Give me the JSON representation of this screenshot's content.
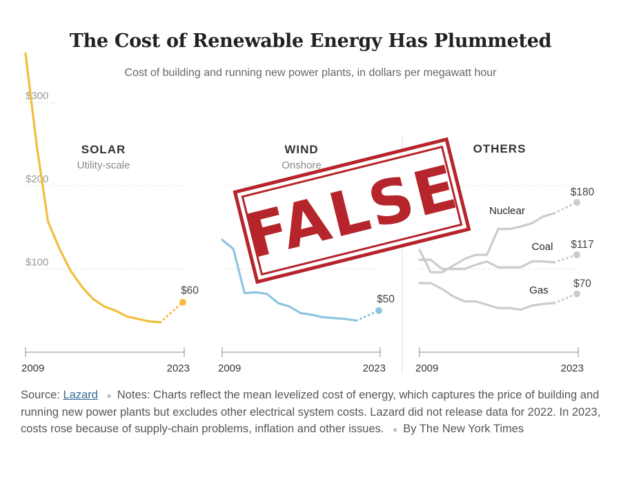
{
  "title": "The Cost of Renewable Energy Has Plummeted",
  "subtitle": "Cost of building and running new power plants, in dollars per megawatt hour",
  "stamp": {
    "text": "FALSE",
    "color": "#b5252b"
  },
  "notes": {
    "source_label": "Source:",
    "source_link": "Lazard",
    "text": "Notes: Charts reflect the mean levelized cost of energy, which captures the price of building and running new power plants but excludes other electrical system costs. Lazard did not release data for 2022. In 2023, costs rose because of supply-chain problems, inflation and other issues.",
    "byline": "By The New York Times"
  },
  "chart_data": [
    {
      "type": "line",
      "title": "SOLAR",
      "subtitle": "Utility-scale",
      "color": "#f0be3c",
      "ylim": [
        0,
        360
      ],
      "yticks": [
        100,
        200,
        300
      ],
      "ytick_labels": [
        "$100",
        "$200",
        "$300"
      ],
      "xlim": [
        2009,
        2023
      ],
      "xtick_labels": [
        "2009",
        "2023"
      ],
      "series": [
        {
          "x": [
            2009,
            2010,
            2011,
            2012,
            2013,
            2014,
            2015,
            2016,
            2017,
            2018,
            2019,
            2020,
            2021,
            2023
          ],
          "y": [
            359,
            248,
            157,
            125,
            98,
            79,
            64,
            55,
            50,
            43,
            40,
            37,
            36,
            60
          ],
          "end_label": "$60"
        }
      ]
    },
    {
      "type": "line",
      "title": "WIND",
      "subtitle": "Onshore",
      "color": "#8ec5e0",
      "ylim": [
        0,
        360
      ],
      "xlim": [
        2009,
        2023
      ],
      "xtick_labels": [
        "2009",
        "2023"
      ],
      "series": [
        {
          "x": [
            2009,
            2010,
            2011,
            2012,
            2013,
            2014,
            2015,
            2016,
            2017,
            2018,
            2019,
            2020,
            2021,
            2023
          ],
          "y": [
            135,
            124,
            71,
            72,
            70,
            59,
            55,
            47,
            45,
            42,
            41,
            40,
            38,
            50
          ],
          "end_label": "$50"
        }
      ]
    },
    {
      "type": "line",
      "title": "OTHERS",
      "color": "#cccccc",
      "ylim": [
        0,
        360
      ],
      "xlim": [
        2009,
        2023
      ],
      "xtick_labels": [
        "2009",
        "2023"
      ],
      "series": [
        {
          "name": "Nuclear",
          "x": [
            2009,
            2010,
            2011,
            2012,
            2013,
            2014,
            2015,
            2016,
            2017,
            2018,
            2019,
            2020,
            2021,
            2023
          ],
          "y": [
            123,
            96,
            96,
            104,
            112,
            117,
            117,
            148,
            148,
            151,
            155,
            163,
            167,
            180
          ],
          "end_label": "$180"
        },
        {
          "name": "Coal",
          "x": [
            2009,
            2010,
            2011,
            2012,
            2013,
            2014,
            2015,
            2016,
            2017,
            2018,
            2019,
            2020,
            2021,
            2023
          ],
          "y": [
            111,
            111,
            100,
            100,
            100,
            105,
            109,
            102,
            102,
            102,
            109,
            109,
            108,
            117
          ],
          "end_label": "$117"
        },
        {
          "name": "Gas",
          "x": [
            2009,
            2010,
            2011,
            2012,
            2013,
            2014,
            2015,
            2016,
            2017,
            2018,
            2019,
            2020,
            2021,
            2023
          ],
          "y": [
            83,
            83,
            76,
            67,
            61,
            61,
            57,
            53,
            53,
            51,
            56,
            58,
            59,
            70
          ],
          "end_label": "$70"
        }
      ]
    }
  ]
}
